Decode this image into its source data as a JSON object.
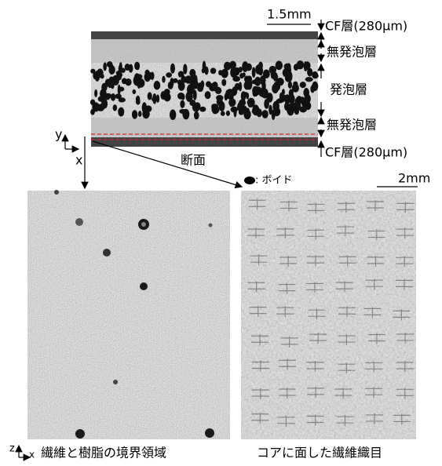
{
  "cross_section": {
    "scale": "1.5mm",
    "layers": [
      "CF層(280µm)",
      "無発泡層",
      "発泡層",
      "無発泡層",
      "CF層(280µm)"
    ],
    "caption": "断面"
  },
  "legend": {
    "void": ": ボイド"
  },
  "scale_bottom": "2mm",
  "axes": {
    "top": {
      "y": "y",
      "x": "x"
    },
    "bottom": {
      "z": "z",
      "x": "x"
    }
  },
  "panels": [
    {
      "caption": "繊維と樹脂の境界領域"
    },
    {
      "caption": "コアに面した繊維織目"
    }
  ]
}
